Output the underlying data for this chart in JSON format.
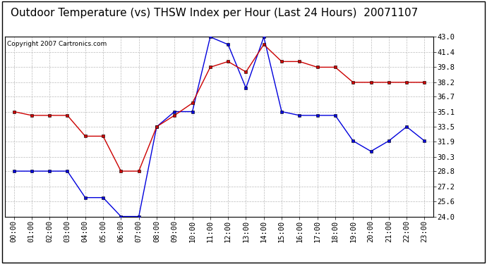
{
  "title": "Outdoor Temperature (vs) THSW Index per Hour (Last 24 Hours)  20071107",
  "copyright": "Copyright 2007 Cartronics.com",
  "hours": [
    "00:00",
    "01:00",
    "02:00",
    "03:00",
    "04:00",
    "05:00",
    "06:00",
    "07:00",
    "08:00",
    "09:00",
    "10:00",
    "11:00",
    "12:00",
    "13:00",
    "14:00",
    "15:00",
    "16:00",
    "17:00",
    "18:00",
    "19:00",
    "20:00",
    "21:00",
    "22:00",
    "23:00"
  ],
  "temp_blue": [
    28.8,
    28.8,
    28.8,
    28.8,
    26.0,
    26.0,
    24.0,
    24.0,
    33.5,
    35.1,
    35.1,
    43.0,
    42.2,
    37.6,
    43.0,
    35.1,
    34.7,
    34.7,
    34.7,
    32.0,
    30.9,
    32.0,
    33.5,
    32.0
  ],
  "thsw_red": [
    35.1,
    34.7,
    34.7,
    34.7,
    32.5,
    32.5,
    28.8,
    28.8,
    33.5,
    34.7,
    36.0,
    39.8,
    40.4,
    39.3,
    42.2,
    40.4,
    40.4,
    39.8,
    39.8,
    38.2,
    38.2,
    38.2,
    38.2,
    38.2
  ],
  "ylim_min": 24.0,
  "ylim_max": 43.0,
  "yticks": [
    24.0,
    25.6,
    27.2,
    28.8,
    30.3,
    31.9,
    33.5,
    35.1,
    36.7,
    38.2,
    39.8,
    41.4,
    43.0
  ],
  "blue_color": "#0000dd",
  "red_color": "#cc0000",
  "bg_color": "#ffffff",
  "plot_bg_color": "#ffffff",
  "grid_color": "#bbbbbb",
  "title_fontsize": 11,
  "copyright_fontsize": 6.5,
  "tick_fontsize": 7.5
}
